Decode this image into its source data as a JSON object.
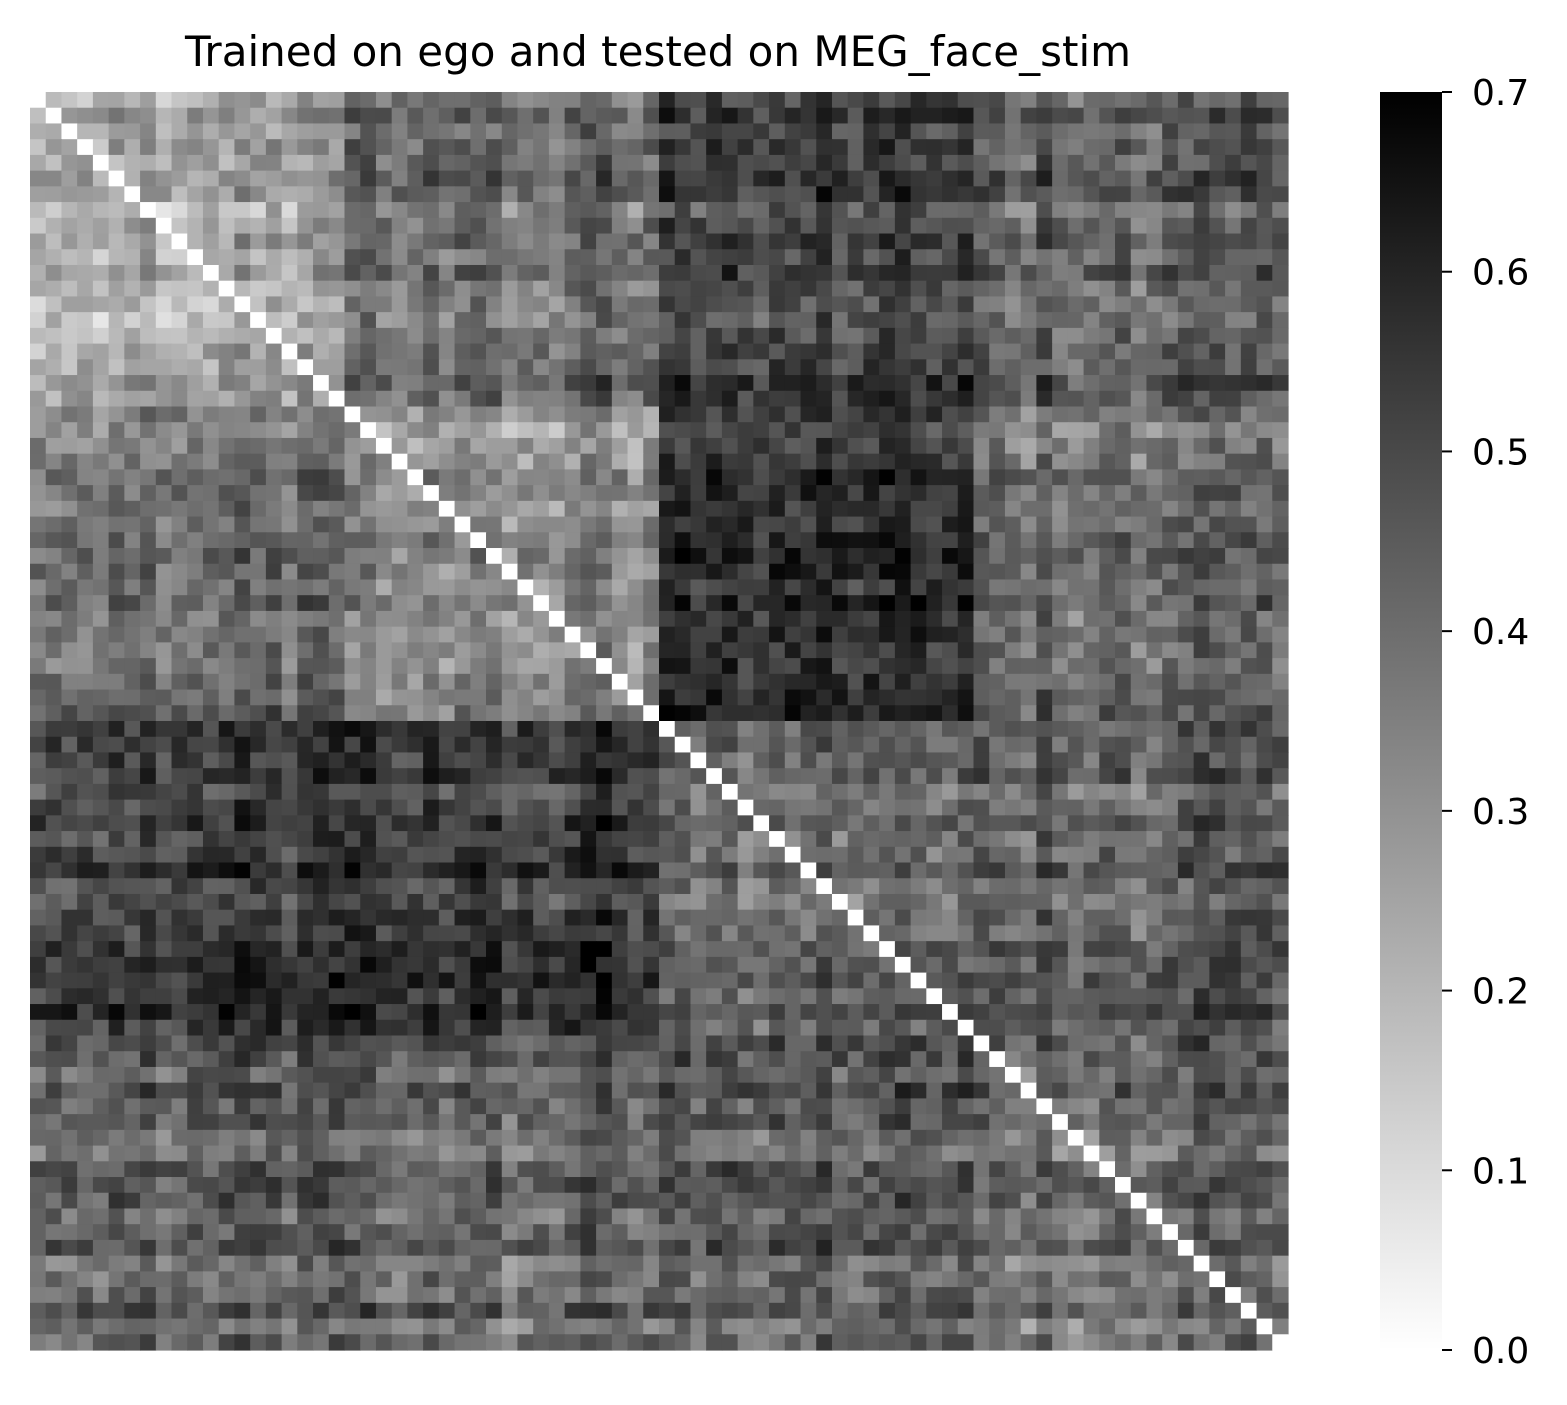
{
  "chart_data": {
    "type": "heatmap",
    "title": "Trained on ego and tested on MEG_face_stim",
    "xlabel": "",
    "ylabel": "",
    "n_rows": 80,
    "n_cols": 80,
    "x_tick_labels": [],
    "y_tick_labels": [],
    "diagonal_value": 0.0,
    "colormap": "Greys",
    "colorscale": {
      "min": 0.0,
      "max": 0.7,
      "low_color": "#ffffff",
      "high_color": "#000000",
      "ticks": [
        0.0,
        0.1,
        0.2,
        0.3,
        0.4,
        0.5,
        0.6,
        0.7
      ],
      "tick_labels": [
        "0.0",
        "0.1",
        "0.2",
        "0.3",
        "0.4",
        "0.5",
        "0.6",
        "0.7"
      ]
    },
    "block_boundaries": [
      0,
      20,
      40,
      60,
      80
    ],
    "block_mean_values": [
      [
        0.26,
        0.4,
        0.52,
        0.43
      ],
      [
        0.4,
        0.31,
        0.56,
        0.39
      ],
      [
        0.55,
        0.55,
        0.42,
        0.44
      ],
      [
        0.45,
        0.42,
        0.45,
        0.4
      ]
    ],
    "cell_variation": 0.09,
    "grid": false,
    "legend": "right"
  }
}
